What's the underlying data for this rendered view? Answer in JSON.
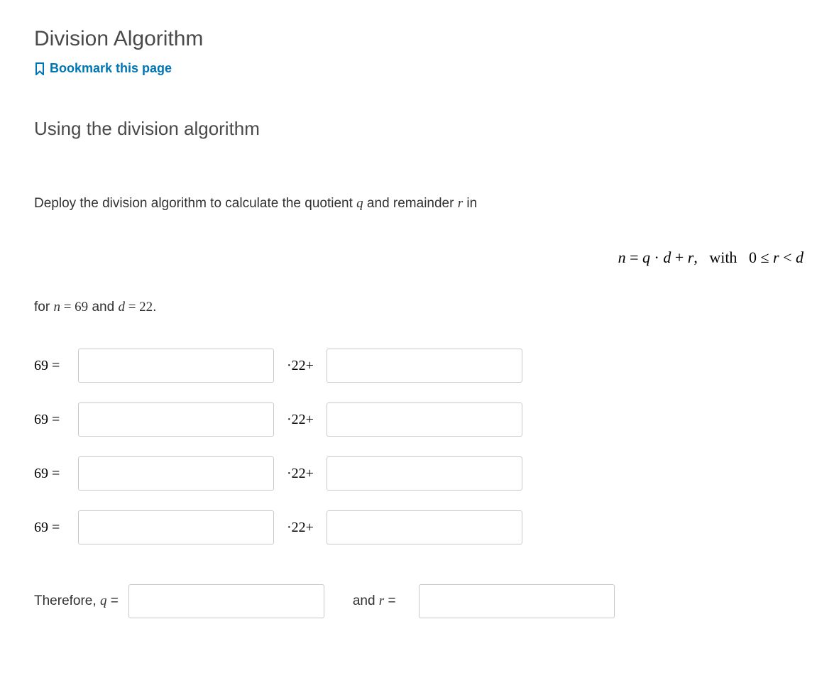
{
  "header": {
    "title": "Division Algorithm",
    "bookmark_label": "Bookmark this page"
  },
  "section": {
    "heading": "Using the division algorithm"
  },
  "problem": {
    "intro_pre": "Deploy the division algorithm to calculate the quotient ",
    "q_var": "q",
    "intro_mid": " and remainder ",
    "r_var": "r",
    "intro_post": " in",
    "formula": "n = q · d + r, with  0 ≤ r < d",
    "for_pre": "for ",
    "for_n": "n",
    "for_eq1": " = ",
    "for_nval": "69",
    "for_and": " and ",
    "for_d": "d",
    "for_eq2": " = ",
    "for_dval": "22",
    "for_period": "."
  },
  "rows": [
    {
      "lhs": "69 =",
      "mid": "·22+"
    },
    {
      "lhs": "69 =",
      "mid": "·22+"
    },
    {
      "lhs": "69 =",
      "mid": "·22+"
    },
    {
      "lhs": "69 =",
      "mid": "·22+"
    }
  ],
  "therefore": {
    "pre": "Therefore, ",
    "q": "q",
    "eq1": " =",
    "and_text": "and ",
    "r": "r",
    "eq2": " ="
  },
  "colors": {
    "link": "#0075b4",
    "text": "#313131",
    "heading": "#4a4a4a",
    "input_border": "#c8c8c8",
    "background": "#ffffff",
    "math_text": "#000000"
  },
  "typography": {
    "title_fontsize": 30,
    "heading_fontsize": 26,
    "body_fontsize": 19,
    "math_fontsize": 20,
    "formula_fontsize": 22
  },
  "layout": {
    "input_wide_width": 276,
    "input_narrow_width": 276,
    "input_height": 48,
    "row_gap": 28
  }
}
